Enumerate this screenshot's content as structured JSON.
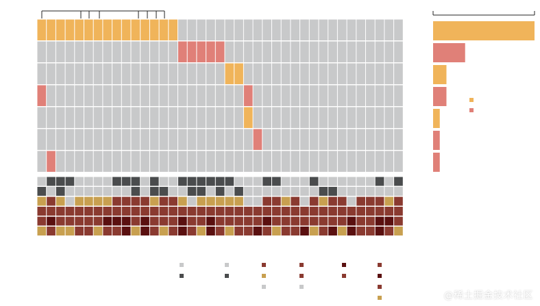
{
  "colors": {
    "background": "#ffffff",
    "cell_empty": "#c8c9ca",
    "cell_orange": "#f0b45a",
    "cell_red": "#e08078",
    "cell_dark": "#4a4c4d",
    "gap": "#ffffff",
    "dendrogram": "#222222",
    "clin": [
      "#c8c9ca",
      "#c8a050",
      "#8a3a30",
      "#5a1010"
    ]
  },
  "watermark": "@稀土掘金技术社区",
  "chart_data": {
    "type": "heatmap",
    "description_free": true,
    "n_samples": 39,
    "main_matrix": {
      "rows": [
        {
          "value": "orange",
          "cols": [
            0,
            1,
            2,
            3,
            4,
            5,
            6,
            7,
            8,
            9,
            10,
            11,
            12,
            13,
            14
          ]
        },
        {
          "value": "red",
          "cols": [
            15,
            16,
            17,
            18,
            19
          ]
        },
        {
          "value": "orange",
          "cols": [
            20,
            21
          ]
        },
        {
          "value": "red",
          "cols": [
            0,
            22
          ]
        },
        {
          "value": "orange",
          "cols": [
            22
          ]
        },
        {
          "value": "red",
          "cols": [
            23
          ]
        },
        {
          "value": "red",
          "cols": [
            1
          ]
        }
      ]
    },
    "annotation_tracks": [
      {
        "levels": 2,
        "values": [
          0,
          1,
          1,
          1,
          0,
          0,
          0,
          0,
          1,
          1,
          1,
          0,
          1,
          0,
          0,
          1,
          1,
          1,
          1,
          1,
          1,
          0,
          0,
          0,
          1,
          1,
          0,
          0,
          0,
          1,
          0,
          0,
          0,
          0,
          0,
          0,
          1,
          0,
          1
        ]
      },
      {
        "levels": 2,
        "values": [
          1,
          0,
          1,
          0,
          0,
          0,
          0,
          0,
          0,
          0,
          1,
          0,
          1,
          1,
          0,
          0,
          1,
          1,
          0,
          1,
          0,
          1,
          0,
          0,
          0,
          0,
          0,
          0,
          0,
          0,
          1,
          1,
          0,
          0,
          0,
          0,
          0,
          0,
          0
        ]
      },
      {
        "levels": 4,
        "values": [
          1,
          2,
          1,
          0,
          1,
          1,
          1,
          1,
          2,
          2,
          2,
          2,
          1,
          2,
          2,
          1,
          0,
          1,
          1,
          1,
          1,
          1,
          0,
          0,
          2,
          2,
          1,
          2,
          0,
          2,
          1,
          2,
          2,
          0,
          2,
          2,
          2,
          1,
          2
        ]
      },
      {
        "levels": 4,
        "values": [
          2,
          2,
          2,
          2,
          2,
          2,
          2,
          2,
          2,
          2,
          2,
          2,
          2,
          2,
          2,
          2,
          2,
          2,
          2,
          2,
          2,
          2,
          2,
          2,
          2,
          2,
          2,
          2,
          2,
          2,
          2,
          2,
          2,
          2,
          2,
          2,
          2,
          2,
          2
        ]
      },
      {
        "levels": 4,
        "values": [
          2,
          3,
          2,
          2,
          2,
          2,
          2,
          3,
          3,
          3,
          2,
          3,
          2,
          2,
          2,
          3,
          2,
          2,
          3,
          2,
          2,
          2,
          2,
          2,
          3,
          2,
          2,
          2,
          2,
          2,
          2,
          2,
          2,
          3,
          2,
          2,
          3,
          3,
          2
        ]
      },
      {
        "levels": 4,
        "values": [
          1,
          2,
          1,
          1,
          2,
          2,
          1,
          2,
          2,
          3,
          1,
          3,
          2,
          1,
          2,
          3,
          2,
          1,
          3,
          2,
          1,
          2,
          2,
          3,
          2,
          1,
          2,
          2,
          3,
          1,
          2,
          3,
          1,
          3,
          2,
          2,
          3,
          2,
          1
        ]
      }
    ],
    "bar_values": [
      38,
      12,
      5,
      5,
      2.5,
      2.5,
      2.5
    ],
    "bar_colors": [
      "orange",
      "red",
      "orange",
      "red",
      "orange",
      "red",
      "red"
    ],
    "bar_xlim": [
      0,
      38
    ],
    "legend_colors": [
      "#f0b45a",
      "#e08078"
    ],
    "bottom_legend": [
      [
        "#c8c9ca",
        "#4a4c4d"
      ],
      [
        "#c8c9ca",
        "#4a4c4d"
      ],
      [
        "#8a3a30",
        "#c8a050",
        "#c8c9ca"
      ],
      [
        "#8a3a30",
        "#8a3a30",
        "#c8c9ca"
      ],
      [
        "#5a1010",
        "#8a3a30"
      ],
      [
        "#8a3a30",
        "#5a1010",
        "#8a3a30",
        "#c8a050"
      ]
    ]
  }
}
